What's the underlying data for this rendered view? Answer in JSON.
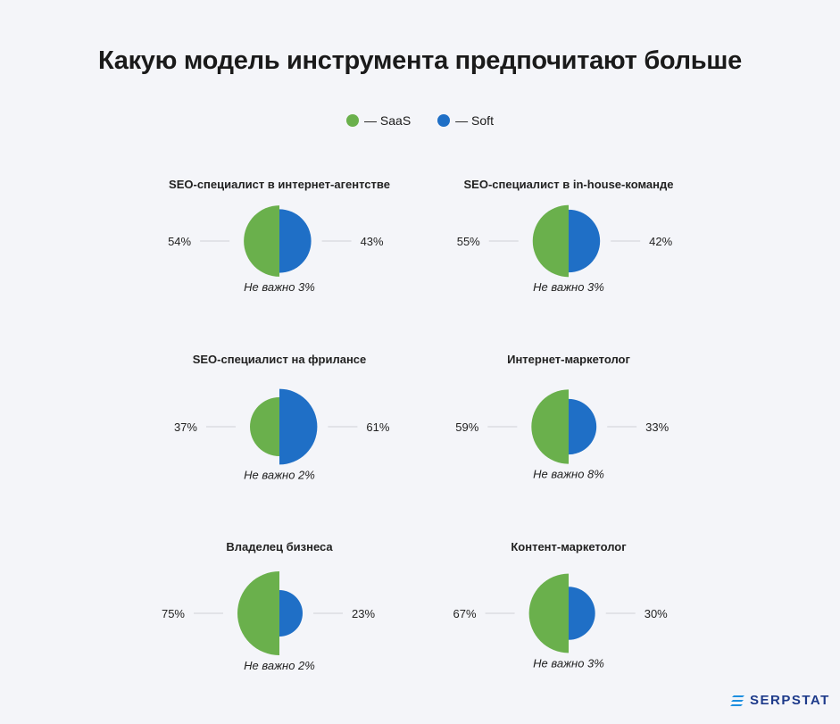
{
  "title": "Какую модель инструмента предпочитают больше",
  "legend": [
    {
      "label": "— SaaS",
      "color": "#6ab04c"
    },
    {
      "label": "— Soft",
      "color": "#1f6fc6"
    }
  ],
  "colors": {
    "saas": "#6ab04c",
    "soft": "#1f6fc6",
    "connector": "#dcdde2"
  },
  "chart_data": {
    "type": "pie",
    "title": "Какую модель инструмента предпочитают больше",
    "series": [
      {
        "name": "SaaS",
        "color": "#6ab04c"
      },
      {
        "name": "Soft",
        "color": "#1f6fc6"
      }
    ],
    "charts": [
      {
        "title": "SEO-специалист в интернет-агентстве",
        "saas": 54,
        "soft": 43,
        "saas_label": "54%",
        "soft_label": "43%",
        "note": "Не важно 3%"
      },
      {
        "title": "SEO-специалист в in-house-команде",
        "saas": 55,
        "soft": 42,
        "saas_label": "55%",
        "soft_label": "42%",
        "note": "Не важно 3%"
      },
      {
        "title": "SEO-специалист на фрилансе",
        "saas": 37,
        "soft": 61,
        "saas_label": "37%",
        "soft_label": "61%",
        "note": "Не важно 2%"
      },
      {
        "title": "Интернет-маркетолог",
        "saas": 59,
        "soft": 33,
        "saas_label": "59%",
        "soft_label": "33%",
        "note": "Не важно 8%"
      },
      {
        "title": "Владелец бизнеса",
        "saas": 75,
        "soft": 23,
        "saas_label": "75%",
        "soft_label": "23%",
        "note": "Не важно 2%"
      },
      {
        "title": "Контент-маркетолог",
        "saas": 67,
        "soft": 30,
        "saas_label": "67%",
        "soft_label": "30%",
        "note": "Не важно 3%"
      }
    ]
  },
  "logo": {
    "text": "SERPSTAT",
    "icon": "serpstat-logo-icon"
  }
}
